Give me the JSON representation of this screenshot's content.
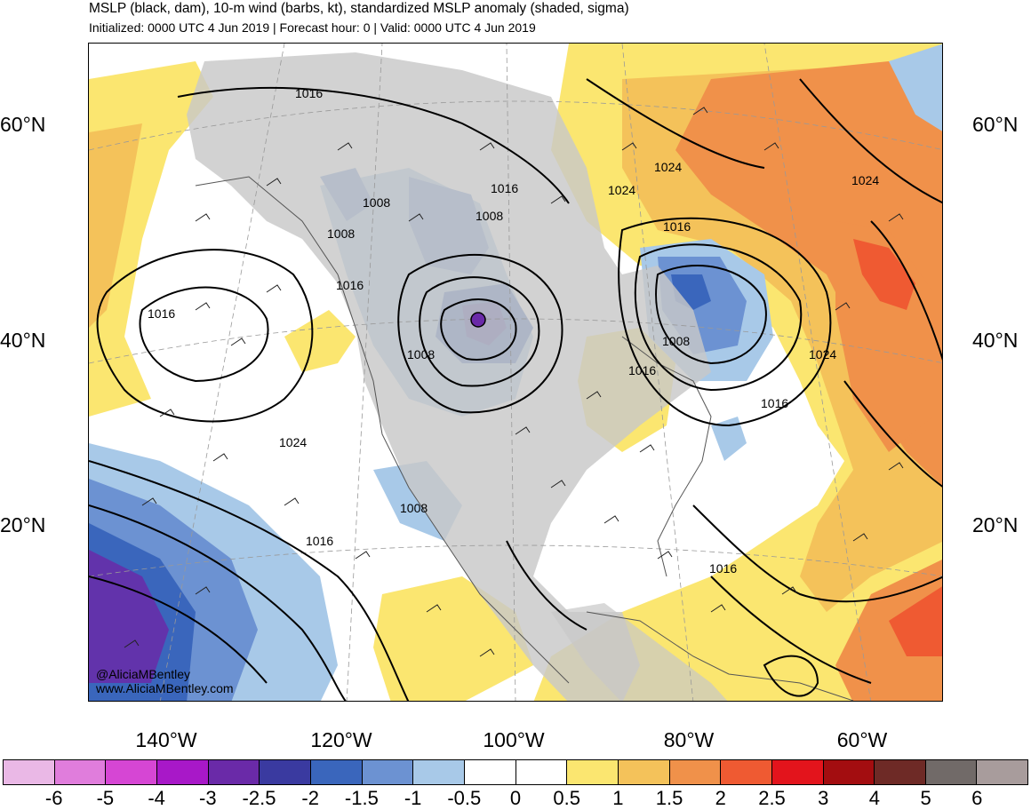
{
  "header": {
    "title": "MSLP (black, dam), 10-m wind (barbs, kt), standardized MSLP anomaly (shaded, sigma)",
    "subtitle": "Initialized: 0000 UTC 4 Jun 2019 | Forecast hour: 0 | Valid: 0000 UTC 4 Jun 2019"
  },
  "map": {
    "lat_labels": [
      "60°N",
      "40°N",
      "20°N"
    ],
    "lon_labels": [
      "140°W",
      "120°W",
      "100°W",
      "80°W",
      "60°W"
    ],
    "isobar_labels": [
      "1016",
      "1008",
      "1008",
      "1016",
      "1008",
      "1016",
      "1016",
      "1008",
      "1024",
      "1024",
      "1024",
      "1016",
      "1008",
      "1016",
      "1024",
      "1016",
      "1008",
      "1016",
      "1024",
      "1016"
    ],
    "credits": {
      "handle": "@AliciaMBentley",
      "site": "www.AliciaMBentley.com"
    },
    "colors": {
      "land_gray": "#c8c8c8",
      "ocean": "#ffffff",
      "coastline": "#555555",
      "isobar": "#000000"
    }
  },
  "colorbar": {
    "labels": [
      "-6",
      "-5",
      "-4",
      "-3",
      "-2.5",
      "-2",
      "-1.5",
      "-1",
      "-0.5",
      "0",
      "0.5",
      "1",
      "1.5",
      "2",
      "2.5",
      "3",
      "4",
      "5",
      "6"
    ],
    "colors": [
      "#eab8e6",
      "#e07ddc",
      "#d646d4",
      "#a818c8",
      "#6a2aa8",
      "#3a3aa0",
      "#3a66bc",
      "#6c92d2",
      "#a8c9e8",
      "#ffffff",
      "#ffffff",
      "#fbe670",
      "#f4c25a",
      "#f0914a",
      "#ef5a32",
      "#e3141c",
      "#a30d10",
      "#6e2a26",
      "#716a68",
      "#a89c9c"
    ]
  }
}
